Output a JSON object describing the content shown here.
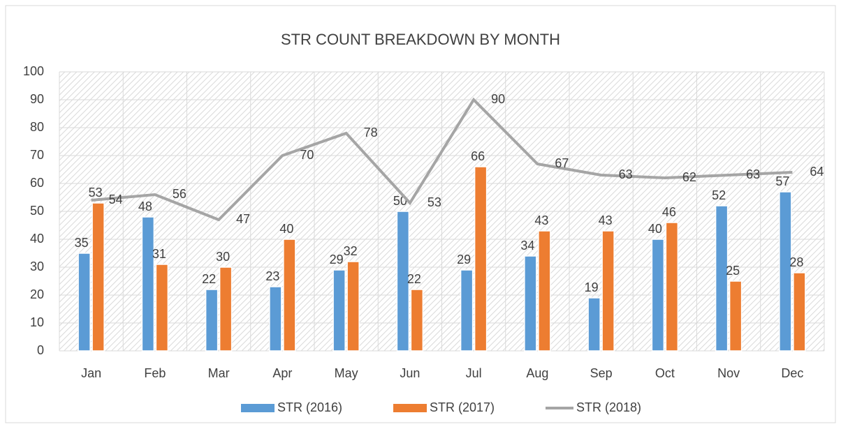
{
  "chart_data": {
    "type": "bar",
    "title": "STR COUNT BREAKDOWN BY MONTH",
    "categories": [
      "Jan",
      "Feb",
      "Mar",
      "Apr",
      "May",
      "Jun",
      "Jul",
      "Aug",
      "Sep",
      "Oct",
      "Nov",
      "Dec"
    ],
    "series": [
      {
        "name": "STR (2016)",
        "color": "#5b9bd5",
        "values": [
          35,
          48,
          22,
          23,
          29,
          50,
          29,
          34,
          19,
          40,
          52,
          57
        ]
      },
      {
        "name": "STR (2017)",
        "color": "#ed7d31",
        "values": [
          53,
          31,
          30,
          40,
          32,
          22,
          66,
          43,
          43,
          46,
          25,
          28
        ]
      },
      {
        "name": "STR (2018)",
        "color": "#a5a5a5",
        "type": "line",
        "values": [
          54,
          56,
          47,
          70,
          78,
          53,
          90,
          67,
          63,
          62,
          63,
          64
        ]
      }
    ],
    "ylim": [
      0,
      100
    ],
    "yticks": [
      0,
      10,
      20,
      30,
      40,
      50,
      60,
      70,
      80,
      90,
      100
    ],
    "grid": true,
    "legend": "bottom"
  }
}
